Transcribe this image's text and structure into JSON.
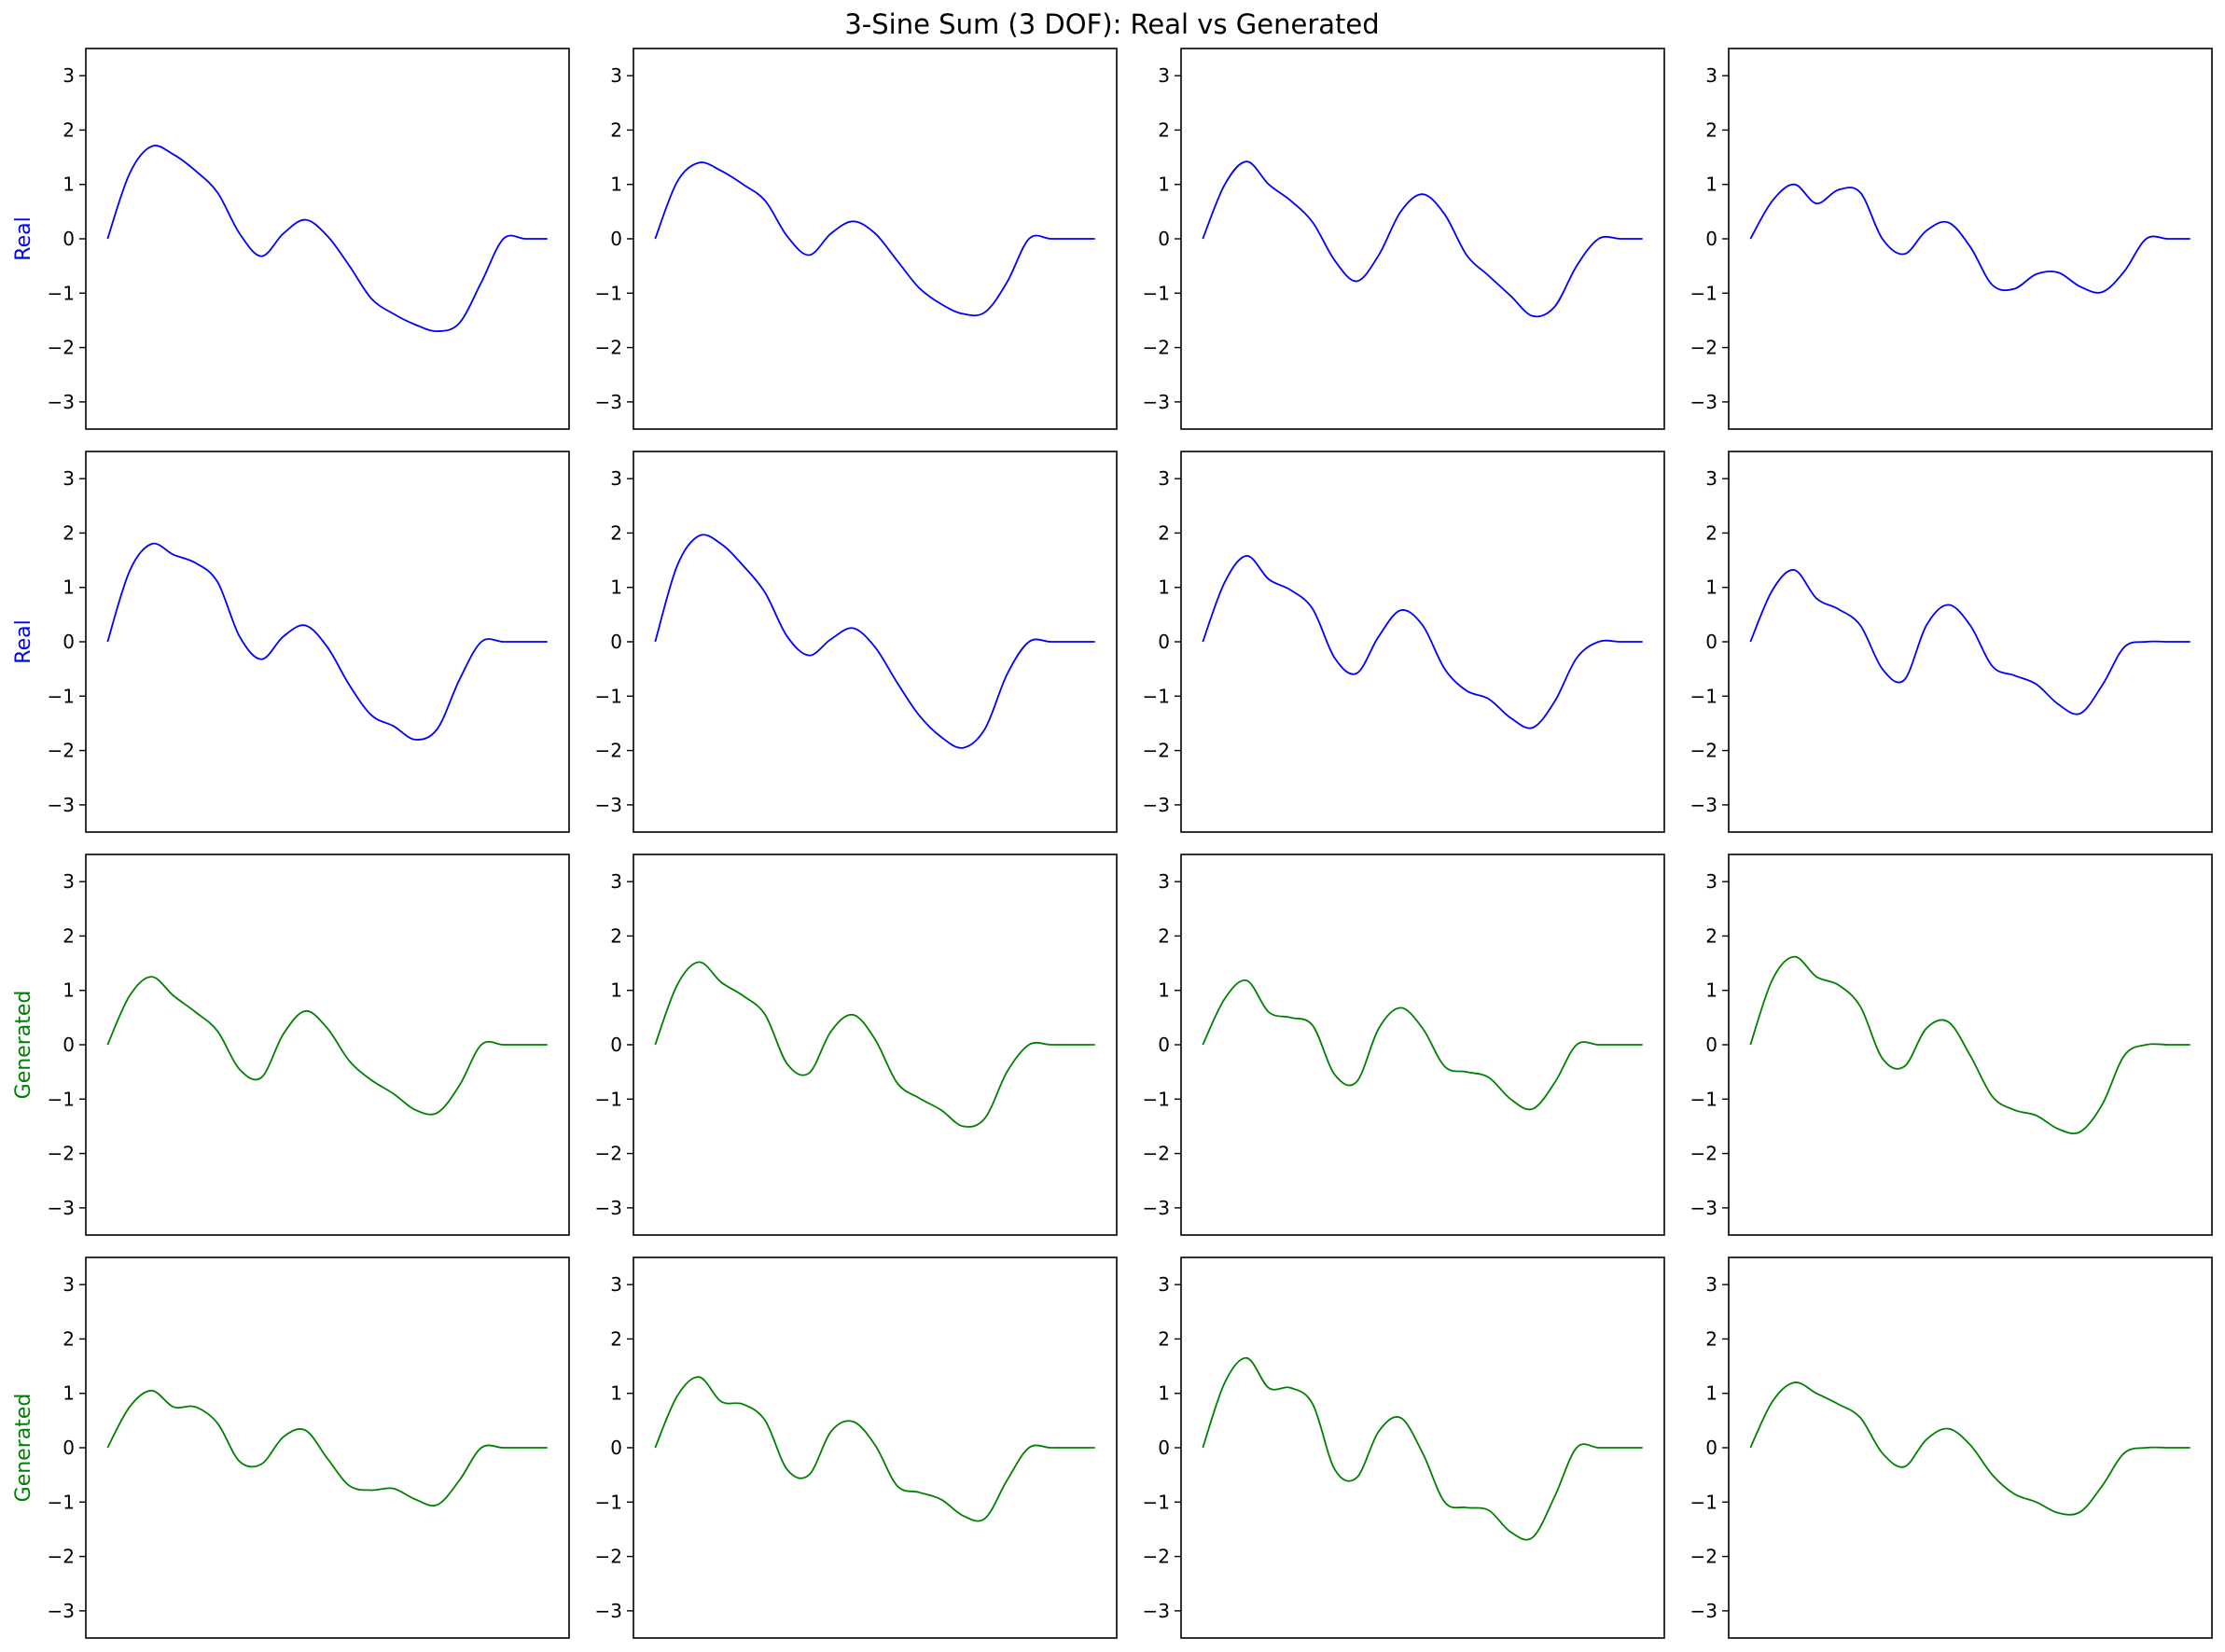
{
  "title": "3-Sine Sum (3 DOF): Real vs Generated",
  "colors": {
    "real": "#0000ff",
    "generated": "#008000",
    "axes": "#000000"
  },
  "chart_data": {
    "type": "line",
    "layout": {
      "rows": 4,
      "cols": 4
    },
    "x_range": [
      0,
      1
    ],
    "ylim": [
      -3.5,
      3.5
    ],
    "yticks": [
      -3,
      -2,
      -1,
      0,
      1,
      2,
      3
    ],
    "ytick_labels": [
      "−3",
      "−2",
      "−1",
      "0",
      "1",
      "2",
      "3"
    ],
    "xticks_visible": false,
    "grid": false,
    "legend": "none",
    "row_labels": [
      "Real",
      "Real",
      "Generated",
      "Generated"
    ],
    "row_colors": [
      "#0000ff",
      "#0000ff",
      "#008000",
      "#008000"
    ],
    "panels": [
      {
        "row": 0,
        "col": 0,
        "kind": "real",
        "x": [
          0,
          0.05,
          0.1,
          0.15,
          0.2,
          0.25,
          0.3,
          0.35,
          0.4,
          0.45,
          0.5,
          0.55,
          0.6,
          0.65,
          0.7,
          0.75,
          0.8,
          0.85,
          0.9,
          0.95,
          1
        ],
        "y": [
          0,
          1.2,
          1.7,
          1.55,
          1.25,
          0.85,
          0.1,
          -0.32,
          0.1,
          0.35,
          0.05,
          -0.5,
          -1.1,
          -1.38,
          -1.58,
          -1.7,
          -1.55,
          -0.8,
          0,
          0,
          0
        ]
      },
      {
        "row": 0,
        "col": 1,
        "kind": "real",
        "x": [
          0,
          0.05,
          0.1,
          0.15,
          0.2,
          0.25,
          0.3,
          0.35,
          0.4,
          0.45,
          0.5,
          0.55,
          0.6,
          0.65,
          0.7,
          0.75,
          0.8,
          0.85,
          0.9,
          0.95,
          1
        ],
        "y": [
          0,
          1.05,
          1.4,
          1.25,
          1.0,
          0.7,
          0.05,
          -0.3,
          0.1,
          0.32,
          0.1,
          -0.4,
          -0.9,
          -1.2,
          -1.38,
          -1.35,
          -0.8,
          0,
          0,
          0,
          0
        ]
      },
      {
        "row": 0,
        "col": 2,
        "kind": "real",
        "x": [
          0,
          0.05,
          0.1,
          0.15,
          0.2,
          0.25,
          0.3,
          0.35,
          0.4,
          0.45,
          0.5,
          0.55,
          0.6,
          0.65,
          0.7,
          0.75,
          0.8,
          0.85,
          0.9,
          0.95,
          1
        ],
        "y": [
          0,
          1.0,
          1.42,
          1.0,
          0.7,
          0.3,
          -0.4,
          -0.78,
          -0.3,
          0.5,
          0.82,
          0.45,
          -0.3,
          -0.68,
          -1.05,
          -1.42,
          -1.25,
          -0.5,
          0,
          0,
          0
        ]
      },
      {
        "row": 0,
        "col": 3,
        "kind": "real",
        "x": [
          0,
          0.05,
          0.1,
          0.15,
          0.2,
          0.25,
          0.3,
          0.35,
          0.4,
          0.45,
          0.5,
          0.55,
          0.6,
          0.65,
          0.7,
          0.75,
          0.8,
          0.85,
          0.9,
          0.95,
          1
        ],
        "y": [
          0,
          0.7,
          1.0,
          0.65,
          0.9,
          0.85,
          0.0,
          -0.28,
          0.15,
          0.3,
          -0.15,
          -0.85,
          -0.92,
          -0.65,
          -0.62,
          -0.88,
          -0.98,
          -0.6,
          0,
          0,
          0
        ]
      },
      {
        "row": 1,
        "col": 0,
        "kind": "real",
        "x": [
          0,
          0.05,
          0.1,
          0.15,
          0.2,
          0.25,
          0.3,
          0.35,
          0.4,
          0.45,
          0.5,
          0.55,
          0.6,
          0.65,
          0.7,
          0.75,
          0.8,
          0.85,
          0.9,
          0.95,
          1
        ],
        "y": [
          0,
          1.3,
          1.8,
          1.6,
          1.45,
          1.1,
          0.1,
          -0.32,
          0.1,
          0.3,
          -0.1,
          -0.8,
          -1.35,
          -1.55,
          -1.8,
          -1.6,
          -0.7,
          0,
          0,
          0,
          0
        ]
      },
      {
        "row": 1,
        "col": 1,
        "kind": "real",
        "x": [
          0,
          0.05,
          0.1,
          0.15,
          0.2,
          0.25,
          0.3,
          0.35,
          0.4,
          0.45,
          0.5,
          0.55,
          0.6,
          0.65,
          0.7,
          0.75,
          0.8,
          0.85,
          0.9,
          0.95,
          1
        ],
        "y": [
          0,
          1.4,
          1.95,
          1.8,
          1.4,
          0.9,
          0.1,
          -0.25,
          0.05,
          0.25,
          -0.1,
          -0.75,
          -1.35,
          -1.75,
          -1.95,
          -1.6,
          -0.6,
          0,
          0,
          0,
          0
        ]
      },
      {
        "row": 1,
        "col": 2,
        "kind": "real",
        "x": [
          0,
          0.05,
          0.1,
          0.15,
          0.2,
          0.25,
          0.3,
          0.35,
          0.4,
          0.45,
          0.5,
          0.55,
          0.6,
          0.65,
          0.7,
          0.75,
          0.8,
          0.85,
          0.9,
          0.95,
          1
        ],
        "y": [
          0,
          1.1,
          1.58,
          1.15,
          0.95,
          0.6,
          -0.3,
          -0.58,
          0.1,
          0.58,
          0.3,
          -0.5,
          -0.9,
          -1.05,
          -1.4,
          -1.58,
          -1.1,
          -0.3,
          0,
          0,
          0
        ]
      },
      {
        "row": 1,
        "col": 3,
        "kind": "real",
        "x": [
          0,
          0.05,
          0.1,
          0.15,
          0.2,
          0.25,
          0.3,
          0.35,
          0.4,
          0.45,
          0.5,
          0.55,
          0.6,
          0.65,
          0.7,
          0.75,
          0.8,
          0.85,
          0.9,
          0.95,
          1
        ],
        "y": [
          0,
          0.95,
          1.32,
          0.8,
          0.6,
          0.3,
          -0.5,
          -0.7,
          0.3,
          0.68,
          0.3,
          -0.45,
          -0.62,
          -0.78,
          -1.15,
          -1.32,
          -0.8,
          -0.1,
          0,
          0,
          0
        ]
      },
      {
        "row": 2,
        "col": 0,
        "kind": "generated",
        "x": [
          0,
          0.05,
          0.1,
          0.15,
          0.2,
          0.25,
          0.3,
          0.35,
          0.4,
          0.45,
          0.5,
          0.55,
          0.6,
          0.65,
          0.7,
          0.75,
          0.8,
          0.85,
          0.9,
          0.95,
          1
        ],
        "y": [
          0,
          0.9,
          1.25,
          0.9,
          0.6,
          0.25,
          -0.45,
          -0.6,
          0.2,
          0.62,
          0.3,
          -0.3,
          -0.65,
          -0.9,
          -1.2,
          -1.25,
          -0.75,
          0,
          0,
          0,
          0
        ]
      },
      {
        "row": 2,
        "col": 1,
        "kind": "generated",
        "x": [
          0,
          0.05,
          0.1,
          0.15,
          0.2,
          0.25,
          0.3,
          0.35,
          0.4,
          0.45,
          0.5,
          0.55,
          0.6,
          0.65,
          0.7,
          0.75,
          0.8,
          0.85,
          0.9,
          0.95,
          1
        ],
        "y": [
          0,
          1.1,
          1.52,
          1.15,
          0.9,
          0.55,
          -0.35,
          -0.52,
          0.25,
          0.55,
          0.1,
          -0.7,
          -0.98,
          -1.2,
          -1.5,
          -1.35,
          -0.5,
          0,
          0,
          0,
          0
        ]
      },
      {
        "row": 2,
        "col": 2,
        "kind": "generated",
        "x": [
          0,
          0.05,
          0.1,
          0.15,
          0.2,
          0.25,
          0.3,
          0.35,
          0.4,
          0.45,
          0.5,
          0.55,
          0.6,
          0.65,
          0.7,
          0.75,
          0.8,
          0.85,
          0.9,
          0.95,
          1
        ],
        "y": [
          0,
          0.85,
          1.18,
          0.6,
          0.5,
          0.35,
          -0.55,
          -0.68,
          0.3,
          0.68,
          0.3,
          -0.4,
          -0.5,
          -0.6,
          -1.0,
          -1.18,
          -0.7,
          0,
          0,
          0,
          0
        ]
      },
      {
        "row": 2,
        "col": 3,
        "kind": "generated",
        "x": [
          0,
          0.05,
          0.1,
          0.15,
          0.2,
          0.25,
          0.3,
          0.35,
          0.4,
          0.45,
          0.5,
          0.55,
          0.6,
          0.65,
          0.7,
          0.75,
          0.8,
          0.85,
          0.9,
          0.95,
          1
        ],
        "y": [
          0,
          1.2,
          1.62,
          1.25,
          1.1,
          0.7,
          -0.25,
          -0.4,
          0.3,
          0.42,
          -0.2,
          -0.95,
          -1.2,
          -1.3,
          -1.55,
          -1.6,
          -1.1,
          -0.2,
          0,
          0,
          0
        ]
      },
      {
        "row": 3,
        "col": 0,
        "kind": "generated",
        "x": [
          0,
          0.05,
          0.1,
          0.15,
          0.2,
          0.25,
          0.3,
          0.35,
          0.4,
          0.45,
          0.5,
          0.55,
          0.6,
          0.65,
          0.7,
          0.75,
          0.8,
          0.85,
          0.9,
          0.95,
          1
        ],
        "y": [
          0,
          0.75,
          1.05,
          0.75,
          0.75,
          0.45,
          -0.25,
          -0.3,
          0.2,
          0.32,
          -0.2,
          -0.7,
          -0.78,
          -0.75,
          -0.95,
          -1.05,
          -0.6,
          0,
          0,
          0,
          0
        ]
      },
      {
        "row": 3,
        "col": 1,
        "kind": "generated",
        "x": [
          0,
          0.05,
          0.1,
          0.15,
          0.2,
          0.25,
          0.3,
          0.35,
          0.4,
          0.45,
          0.5,
          0.55,
          0.6,
          0.65,
          0.7,
          0.75,
          0.8,
          0.85,
          0.9,
          0.95,
          1
        ],
        "y": [
          0,
          0.95,
          1.3,
          0.85,
          0.8,
          0.5,
          -0.4,
          -0.5,
          0.3,
          0.48,
          0.05,
          -0.7,
          -0.82,
          -0.95,
          -1.25,
          -1.3,
          -0.6,
          0,
          0,
          0,
          0
        ]
      },
      {
        "row": 3,
        "col": 2,
        "kind": "generated",
        "x": [
          0,
          0.05,
          0.1,
          0.15,
          0.2,
          0.25,
          0.3,
          0.35,
          0.4,
          0.45,
          0.5,
          0.55,
          0.6,
          0.65,
          0.7,
          0.75,
          0.8,
          0.85,
          0.9,
          0.95,
          1
        ],
        "y": [
          0,
          1.2,
          1.65,
          1.1,
          1.1,
          0.8,
          -0.4,
          -0.55,
          0.3,
          0.55,
          -0.1,
          -1.0,
          -1.1,
          -1.15,
          -1.55,
          -1.65,
          -0.9,
          0,
          0,
          0,
          0
        ]
      },
      {
        "row": 3,
        "col": 3,
        "kind": "generated",
        "x": [
          0,
          0.05,
          0.1,
          0.15,
          0.2,
          0.25,
          0.3,
          0.35,
          0.4,
          0.45,
          0.5,
          0.55,
          0.6,
          0.65,
          0.7,
          0.75,
          0.8,
          0.85,
          0.9,
          0.95,
          1
        ],
        "y": [
          0,
          0.85,
          1.2,
          1.0,
          0.8,
          0.55,
          -0.1,
          -0.35,
          0.15,
          0.35,
          0.05,
          -0.5,
          -0.85,
          -1.0,
          -1.2,
          -1.18,
          -0.7,
          -0.1,
          0,
          0,
          0
        ]
      }
    ]
  }
}
